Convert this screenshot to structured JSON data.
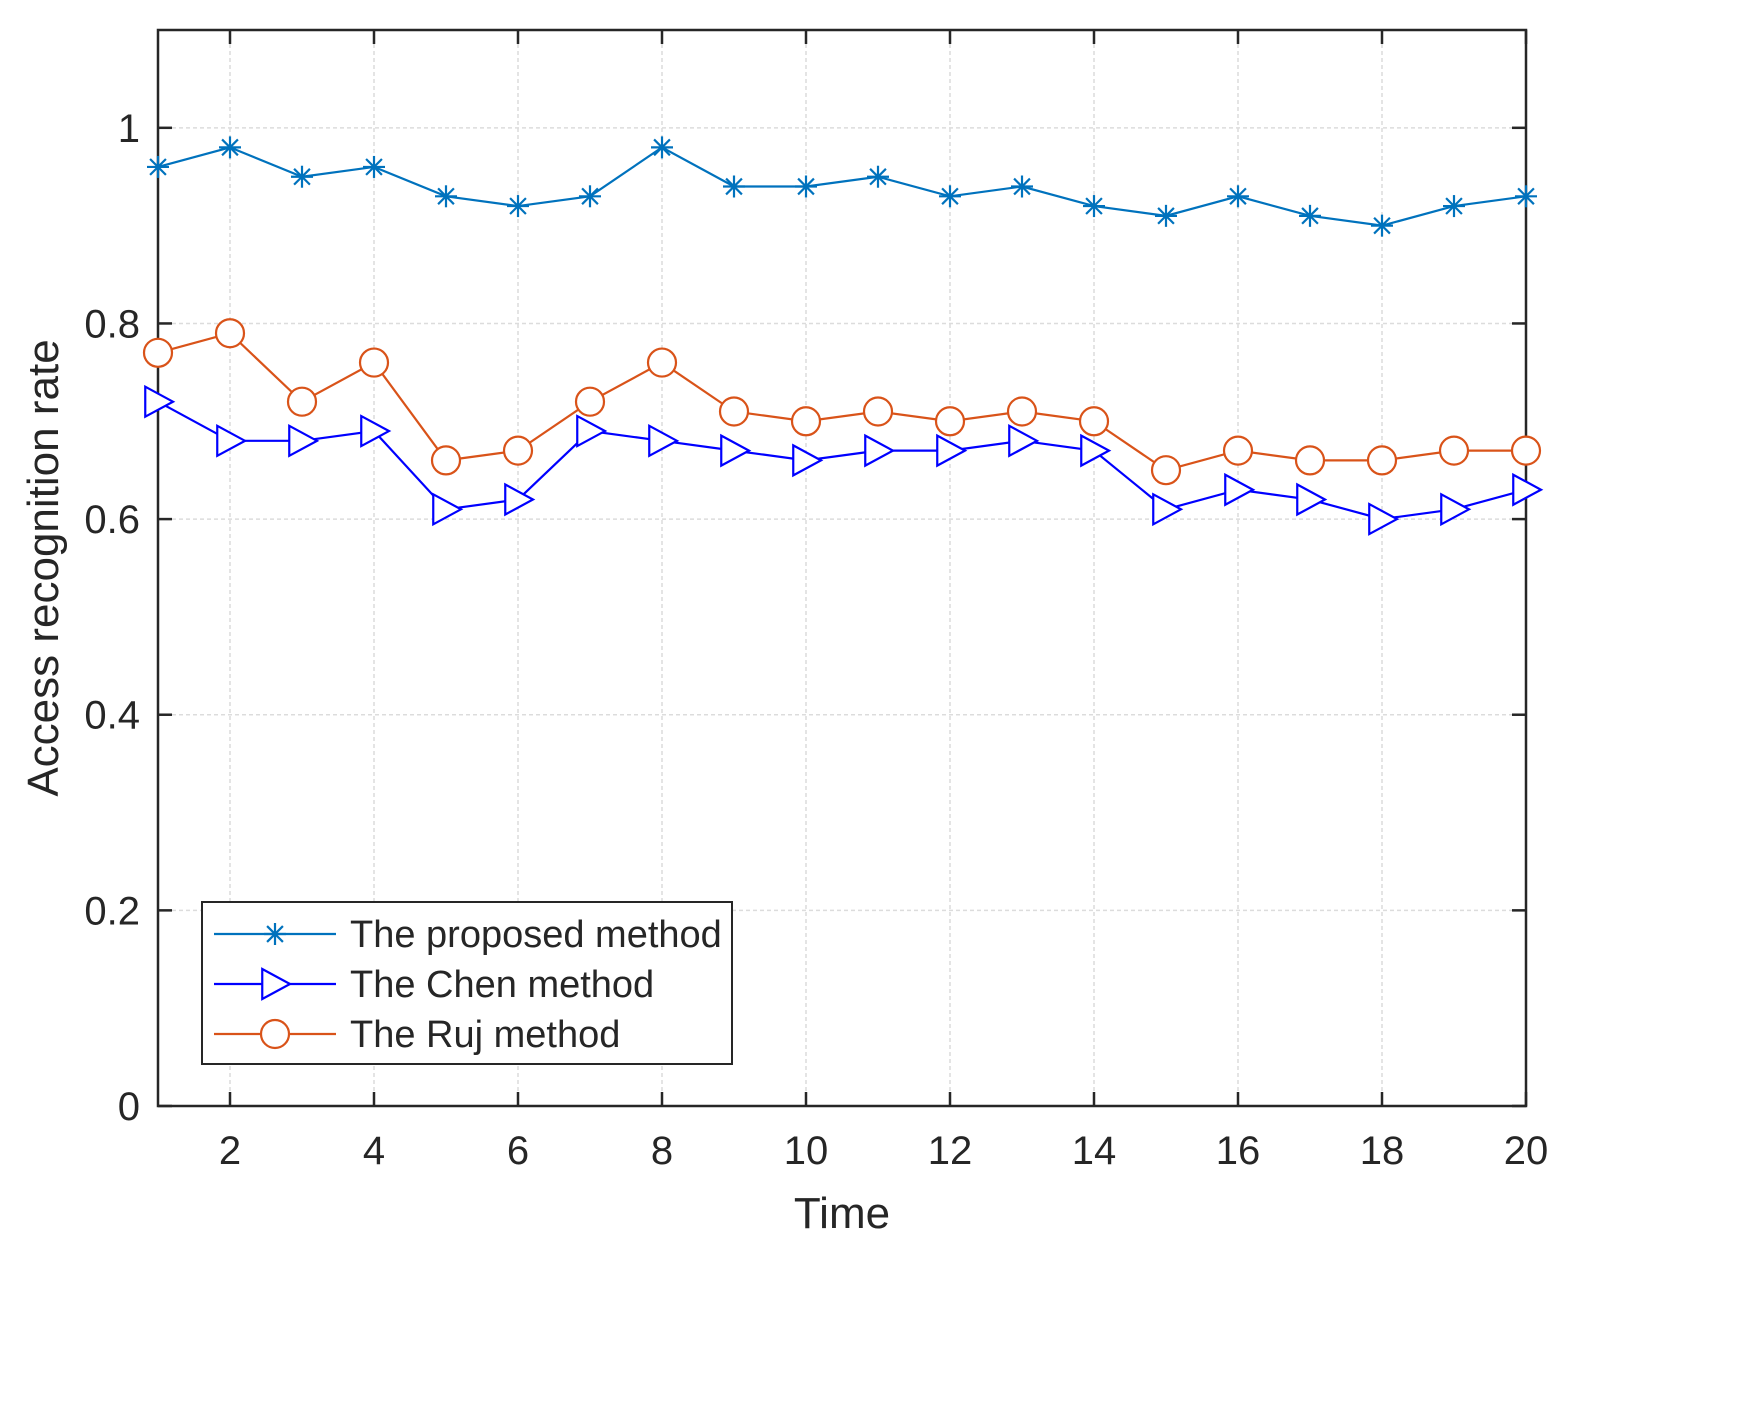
{
  "chart_data": {
    "type": "line",
    "title": "",
    "xlabel": "Time",
    "ylabel": "Access recognition rate",
    "xlim": [
      1,
      20
    ],
    "ylim": [
      0,
      1.1
    ],
    "grid": true,
    "x": [
      1,
      2,
      3,
      4,
      5,
      6,
      7,
      8,
      9,
      10,
      11,
      12,
      13,
      14,
      15,
      16,
      17,
      18,
      19,
      20
    ],
    "xticks": [
      2,
      4,
      6,
      8,
      10,
      12,
      14,
      16,
      18,
      20
    ],
    "xtick_labels": [
      "2",
      "4",
      "6",
      "8",
      "10",
      "12",
      "14",
      "16",
      "18",
      "20"
    ],
    "yticks": [
      0,
      0.2,
      0.4,
      0.6,
      0.8,
      1
    ],
    "ytick_labels": [
      "0",
      "0.2",
      "0.4",
      "0.6",
      "0.8",
      "1"
    ],
    "legend_position": "bottom-left",
    "series": [
      {
        "name": "The proposed method",
        "color": "#0072BD",
        "marker": "asterisk",
        "values": [
          0.96,
          0.98,
          0.95,
          0.96,
          0.93,
          0.92,
          0.93,
          0.98,
          0.94,
          0.94,
          0.95,
          0.93,
          0.94,
          0.92,
          0.91,
          0.93,
          0.91,
          0.9,
          0.92,
          0.93
        ]
      },
      {
        "name": "The Chen method",
        "color": "#0000FF",
        "marker": "triangle-right",
        "values": [
          0.72,
          0.68,
          0.68,
          0.69,
          0.61,
          0.62,
          0.69,
          0.68,
          0.67,
          0.66,
          0.67,
          0.67,
          0.68,
          0.67,
          0.61,
          0.63,
          0.62,
          0.6,
          0.61,
          0.63
        ]
      },
      {
        "name": "The Ruj method",
        "color": "#D95319",
        "marker": "circle",
        "values": [
          0.77,
          0.79,
          0.72,
          0.76,
          0.66,
          0.67,
          0.72,
          0.76,
          0.71,
          0.7,
          0.71,
          0.7,
          0.71,
          0.7,
          0.65,
          0.67,
          0.66,
          0.66,
          0.67,
          0.67
        ]
      }
    ]
  }
}
